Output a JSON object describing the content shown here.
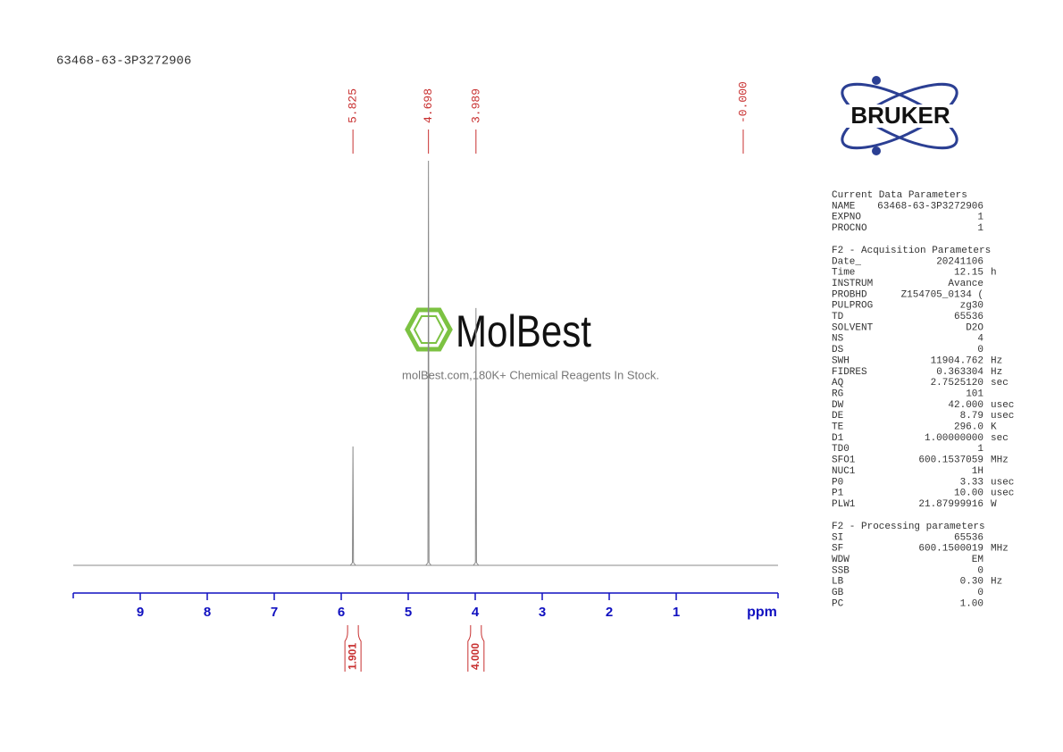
{
  "chart_data": {
    "type": "nmr",
    "title": "63468-63-3P3272906",
    "xlabel": "ppm",
    "xlim": [
      10,
      -0.52
    ],
    "xticks": [
      9,
      8,
      7,
      6,
      5,
      4,
      3,
      2,
      1
    ],
    "ylim": [
      0,
      100
    ],
    "color": "#888888",
    "axis_color": "#1010c0",
    "label_color": "#c83030",
    "series": [
      {
        "name": "1H",
        "x": [
          5.825,
          4.698,
          3.989
        ],
        "values": [
          29.4,
          100,
          63.6
        ]
      }
    ],
    "peak_labels": {
      "x": [
        5.825,
        4.698,
        3.989,
        0
      ],
      "value_labels": [
        "5.825",
        "4.698",
        "3.989",
        "-0.000"
      ]
    },
    "integrals": {
      "x": [
        5.825,
        3.989
      ],
      "values": [
        1.901,
        4
      ],
      "value_labels": [
        "1.901",
        "4.000"
      ]
    }
  },
  "logo": "BRUKER",
  "watermark": {
    "brand": "MolBest",
    "tagline": "molBest.com,180K+ Chemical Reagents In Stock."
  },
  "parameters": [
    {
      "title": "Current Data Parameters",
      "rows": [
        [
          "NAME",
          "63468-63-3P3272906"
        ],
        [
          "EXPNO",
          "1"
        ],
        [
          "PROCNO",
          "1"
        ]
      ]
    },
    {
      "title": "F2 - Acquisition Parameters",
      "rows": [
        [
          "Date_",
          "20241106"
        ],
        [
          "Time",
          "12.15",
          "h"
        ],
        [
          "INSTRUM",
          "Avance"
        ],
        [
          "PROBHD",
          "Z154705_0134 ("
        ],
        [
          "PULPROG",
          "zg30"
        ],
        [
          "TD",
          "65536"
        ],
        [
          "SOLVENT",
          "D2O"
        ],
        [
          "NS",
          "4"
        ],
        [
          "DS",
          "0"
        ],
        [
          "SWH",
          "11904.762",
          "Hz"
        ],
        [
          "FIDRES",
          "0.363304",
          "Hz"
        ],
        [
          "AQ",
          "2.7525120",
          "sec"
        ],
        [
          "RG",
          "101"
        ],
        [
          "DW",
          "42.000",
          "usec"
        ],
        [
          "DE",
          "8.79",
          "usec"
        ],
        [
          "TE",
          "296.0",
          "K"
        ],
        [
          "D1",
          "1.00000000",
          "sec"
        ],
        [
          "TD0",
          "1"
        ],
        [
          "SFO1",
          "600.1537059",
          "MHz"
        ],
        [
          "NUC1",
          "1H"
        ],
        [
          "P0",
          "3.33",
          "usec"
        ],
        [
          "P1",
          "10.00",
          "usec"
        ],
        [
          "PLW1",
          "21.87999916",
          "W"
        ]
      ]
    },
    {
      "title": "F2 - Processing parameters",
      "rows": [
        [
          "SI",
          "65536"
        ],
        [
          "SF",
          "600.1500019",
          "MHz"
        ],
        [
          "WDW",
          "EM"
        ],
        [
          "SSB",
          "0"
        ],
        [
          "LB",
          "0.30",
          "Hz"
        ],
        [
          "GB",
          "0"
        ],
        [
          "PC",
          "1.00"
        ]
      ]
    }
  ]
}
